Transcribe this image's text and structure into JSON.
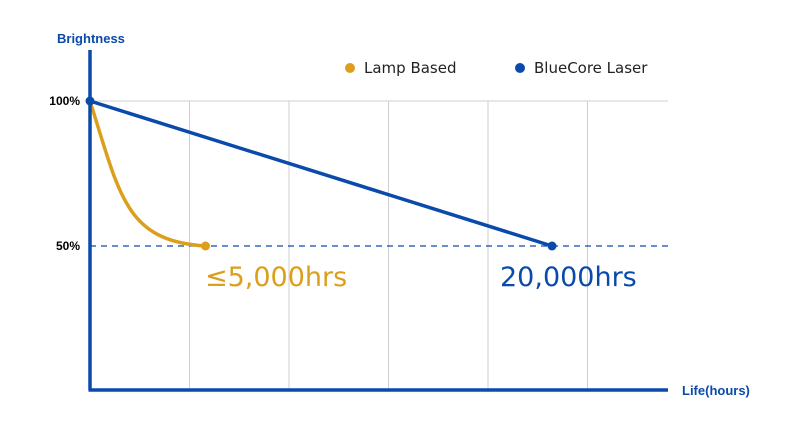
{
  "chart_data": {
    "type": "line",
    "xlabel": "Life(hours)",
    "ylabel": "Brightness",
    "y_ticks": [
      {
        "value": 100,
        "label": "100%"
      },
      {
        "value": 50,
        "label": "50%"
      }
    ],
    "x_grid_count": 5,
    "series": [
      {
        "name": "Lamp Based",
        "color": "#DC9F1B",
        "curve": "decay",
        "points": [
          [
            0,
            100
          ],
          [
            5000,
            50
          ]
        ],
        "end_label": "≤5,000hrs"
      },
      {
        "name": "BlueCore Laser",
        "color": "#0A4AAB",
        "curve": "linear",
        "points": [
          [
            0,
            100
          ],
          [
            20000,
            50
          ]
        ],
        "end_label": "20,000hrs"
      }
    ],
    "reference_line": {
      "y": 50,
      "style": "dashed",
      "color": "#0A4AAB"
    },
    "legend_position": "top-right",
    "grid": "vertical"
  }
}
